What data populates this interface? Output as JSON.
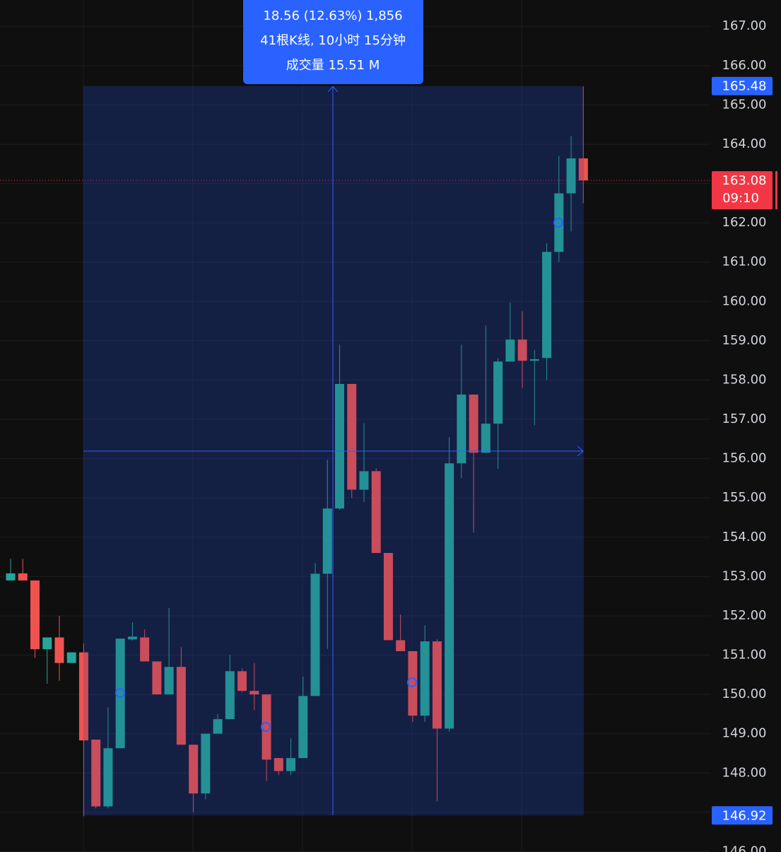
{
  "chart_data": {
    "type": "candlestick",
    "up_color": "#26a69a",
    "down_color": "#ef5350",
    "open": [
      152.9,
      153.08,
      152.9,
      151.15,
      151.45,
      150.8,
      151.07,
      148.85,
      147.15,
      148.63,
      151.4,
      151.45,
      150.84,
      150.0,
      150.7,
      148.72,
      147.48,
      149.0,
      149.37,
      150.59,
      150.09,
      150.0,
      148.38,
      148.05,
      148.38,
      149.96,
      153.07,
      154.73,
      157.9,
      155.21,
      155.68,
      153.6,
      151.38,
      151.1,
      149.46,
      151.35,
      149.13,
      155.88,
      157.63,
      156.15,
      156.89,
      158.47,
      159.03,
      158.49,
      158.56,
      161.26,
      162.75,
      163.64
    ],
    "high": [
      153.45,
      153.45,
      152.9,
      151.45,
      152.0,
      151.07,
      151.3,
      148.85,
      149.67,
      151.42,
      151.83,
      151.65,
      150.84,
      152.2,
      151.2,
      148.72,
      149.0,
      149.5,
      151.0,
      150.66,
      150.8,
      150.0,
      148.38,
      148.88,
      150.45,
      153.34,
      155.97,
      158.9,
      157.9,
      156.9,
      155.75,
      153.6,
      152.03,
      151.1,
      151.76,
      151.4,
      156.55,
      158.9,
      157.63,
      159.39,
      158.55,
      159.97,
      159.75,
      158.76,
      161.48,
      163.7,
      164.21,
      165.47
    ],
    "low": [
      152.9,
      152.9,
      150.93,
      150.27,
      150.35,
      150.8,
      146.9,
      147.1,
      147.1,
      148.63,
      151.37,
      150.84,
      150.0,
      150.0,
      148.72,
      147.0,
      147.33,
      149.0,
      149.37,
      150.05,
      149.6,
      147.8,
      147.95,
      147.95,
      148.38,
      149.96,
      151.16,
      154.7,
      155.0,
      154.9,
      153.6,
      151.38,
      151.1,
      149.3,
      149.3,
      147.28,
      149.05,
      155.5,
      154.12,
      156.15,
      155.74,
      158.47,
      157.8,
      156.85,
      158.0,
      161.0,
      161.78,
      162.5
    ],
    "close": [
      153.08,
      152.9,
      151.15,
      151.45,
      150.8,
      151.07,
      148.83,
      147.15,
      148.63,
      151.42,
      151.47,
      150.84,
      150.0,
      150.7,
      148.72,
      147.48,
      149.0,
      149.37,
      150.59,
      150.09,
      150.0,
      148.34,
      148.05,
      148.38,
      149.96,
      153.07,
      154.73,
      157.9,
      155.21,
      155.68,
      153.6,
      151.38,
      151.1,
      149.46,
      151.35,
      149.13,
      155.88,
      157.63,
      156.15,
      156.89,
      158.47,
      159.03,
      158.49,
      158.53,
      161.26,
      162.75,
      163.64,
      163.08
    ],
    "ylim": [
      145.99,
      167.67
    ],
    "yticks": [
      {
        "value": 146,
        "label": "146.00"
      },
      {
        "value": 147,
        "label": "147.00"
      },
      {
        "value": 148,
        "label": "148.00"
      },
      {
        "value": 149,
        "label": "149.00"
      },
      {
        "value": 150,
        "label": "150.00"
      },
      {
        "value": 151,
        "label": "151.00"
      },
      {
        "value": 152,
        "label": "152.00"
      },
      {
        "value": 153,
        "label": "153.00"
      },
      {
        "value": 154,
        "label": "154.00"
      },
      {
        "value": 155,
        "label": "155.00"
      },
      {
        "value": 156,
        "label": "156.00"
      },
      {
        "value": 157,
        "label": "157.00"
      },
      {
        "value": 158,
        "label": "158.00"
      },
      {
        "value": 159,
        "label": "159.00"
      },
      {
        "value": 160,
        "label": "160.00"
      },
      {
        "value": 161,
        "label": "161.00"
      },
      {
        "value": 162,
        "label": "162.00"
      },
      {
        "value": 163,
        "label": "163.00"
      },
      {
        "value": 164,
        "label": "164.00"
      },
      {
        "value": 165,
        "label": "165.00"
      },
      {
        "value": 166,
        "label": "166.00"
      },
      {
        "value": 167,
        "label": "167.00"
      }
    ],
    "grid": true,
    "price_labels": [
      {
        "value": 165.48,
        "label": "165.48",
        "color": "#2962ff"
      },
      {
        "value": 163.08,
        "label": "163.08",
        "sublabel": "09:10",
        "color": "#f23645"
      },
      {
        "value": 146.92,
        "label": "146.92",
        "color": "#2962ff"
      }
    ],
    "tooltip": [
      "18.56 (12.63%) 1,856",
      "41根K线, 10小时 15分钟",
      "成交量 15.51 M"
    ]
  }
}
